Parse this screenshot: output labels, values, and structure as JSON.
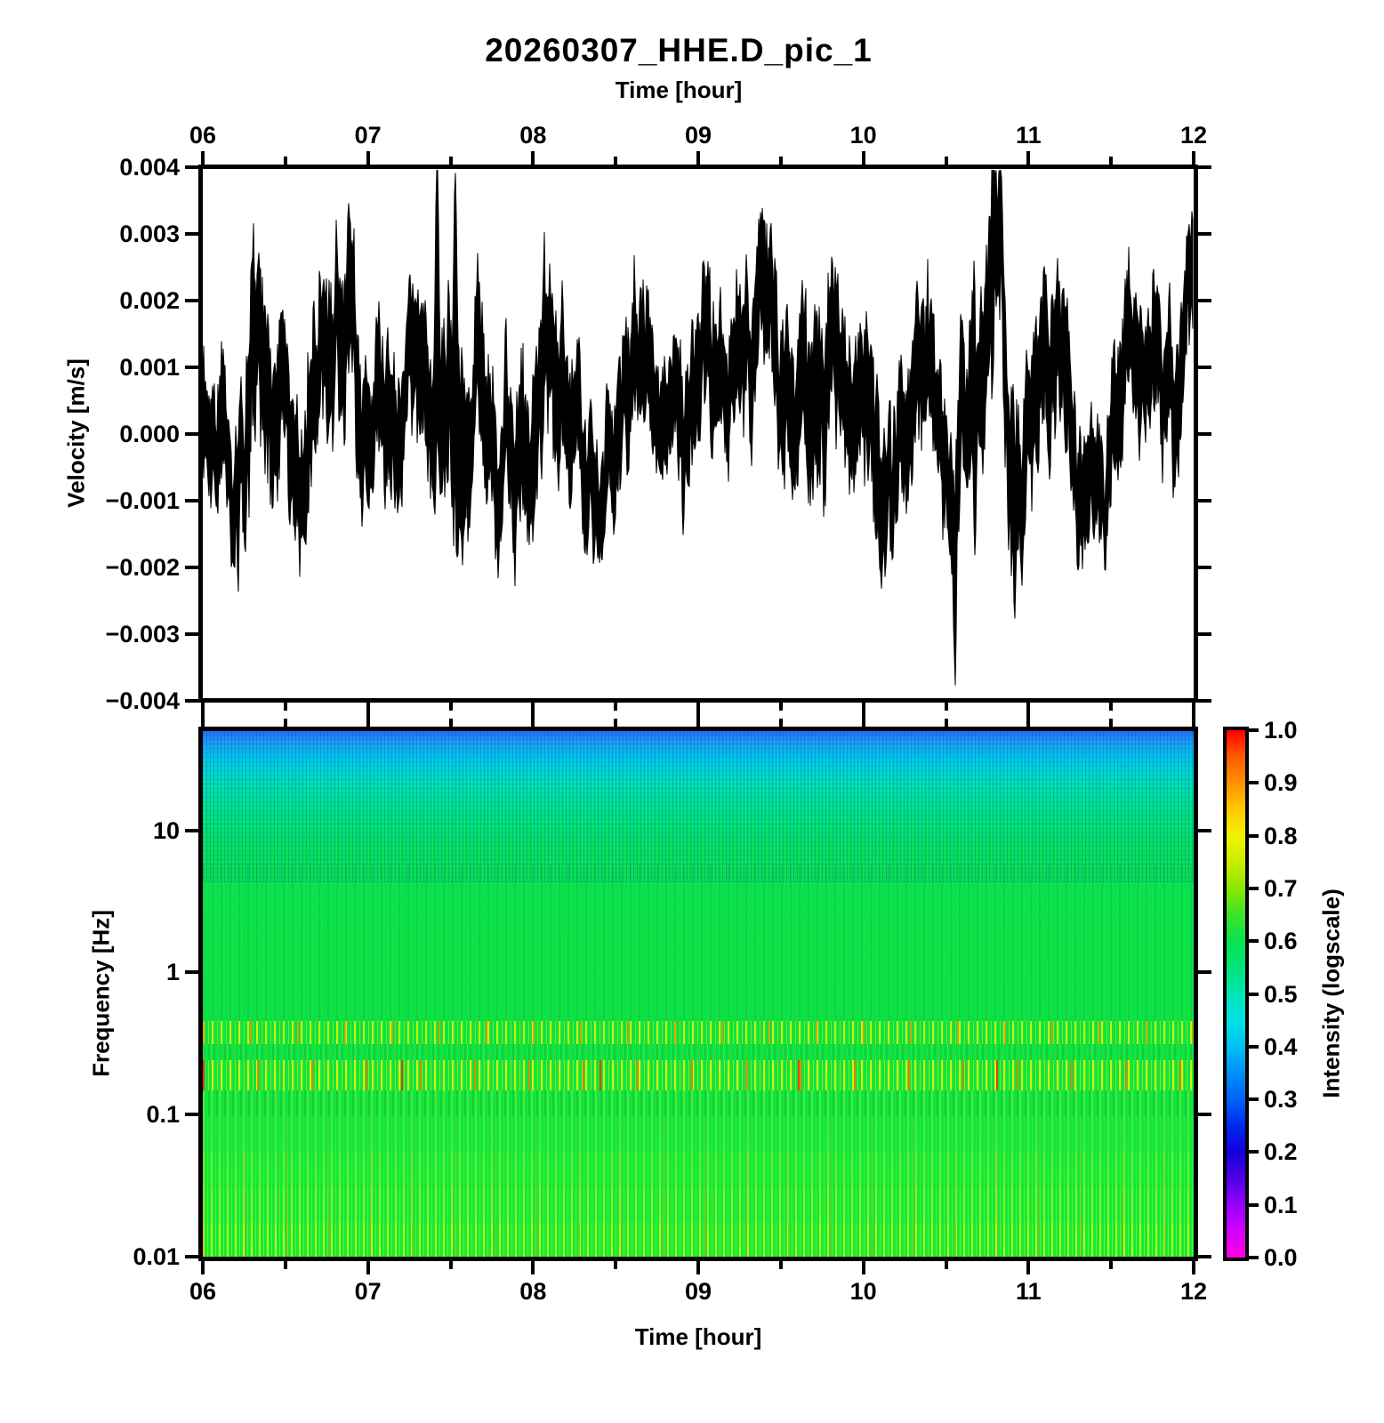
{
  "title": "20260307_HHE.D_pic_1",
  "background_color": "#ffffff",
  "trace_color": "#000000",
  "chart_data": [
    {
      "type": "line",
      "id": "waveform",
      "top_axis_title": "Time [hour]",
      "ylabel": "Velocity [m/s]",
      "x_range": [
        6,
        12
      ],
      "ylim": [
        -0.004,
        0.004
      ],
      "x_major_ticks": [
        6,
        7,
        8,
        9,
        10,
        11,
        12
      ],
      "x_tick_labels": [
        "06",
        "07",
        "08",
        "09",
        "10",
        "11",
        "12"
      ],
      "x_minor_ticks": [
        6.5,
        7.5,
        8.5,
        9.5,
        10.5,
        11.5
      ],
      "y_major_ticks": [
        0.004,
        0.003,
        0.002,
        0.001,
        0.0,
        -0.001,
        -0.002,
        -0.003,
        -0.004
      ],
      "y_tick_labels": [
        "0.004",
        "0.003",
        "0.002",
        "0.001",
        "0.000",
        "−0.001",
        "−0.002",
        "−0.003",
        "−0.004"
      ],
      "seed": 20260307,
      "envelope": [
        [
          6.0,
          0.0002,
          0.0012
        ],
        [
          6.15,
          0.0,
          0.0011
        ],
        [
          6.3,
          0.0008,
          0.0018
        ],
        [
          6.45,
          -0.0004,
          0.0014
        ],
        [
          6.6,
          0.0002,
          0.0013
        ],
        [
          6.75,
          0.0008,
          0.0015
        ],
        [
          6.9,
          0.001,
          0.0014
        ],
        [
          7.05,
          0.0009,
          0.0013
        ],
        [
          7.2,
          0.0004,
          0.0012
        ],
        [
          7.35,
          0.0006,
          0.0014
        ],
        [
          7.5,
          0.0009,
          0.0018
        ],
        [
          7.65,
          0.0007,
          0.0015
        ],
        [
          7.8,
          0.0002,
          0.0013
        ],
        [
          7.95,
          -0.0001,
          0.0014
        ],
        [
          8.1,
          0.0008,
          0.0015
        ],
        [
          8.25,
          0.0003,
          0.0012
        ],
        [
          8.4,
          0.0,
          0.0011
        ],
        [
          8.55,
          0.0006,
          0.0014
        ],
        [
          8.7,
          0.0007,
          0.0012
        ],
        [
          8.85,
          0.0005,
          0.0011
        ],
        [
          9.0,
          0.0003,
          0.0013
        ],
        [
          9.15,
          0.0009,
          0.0014
        ],
        [
          9.3,
          0.0009,
          0.0013
        ],
        [
          9.45,
          0.0012,
          0.0014
        ],
        [
          9.6,
          0.0004,
          0.0015
        ],
        [
          9.75,
          0.0009,
          0.0016
        ],
        [
          9.9,
          0.0002,
          0.0014
        ],
        [
          10.05,
          0.0007,
          0.0015
        ],
        [
          10.2,
          0.0001,
          0.0013
        ],
        [
          10.35,
          0.0007,
          0.0013
        ],
        [
          10.5,
          -0.0002,
          0.0013
        ],
        [
          10.65,
          0.0005,
          0.0016
        ],
        [
          10.8,
          0.0018,
          0.0017
        ],
        [
          10.95,
          -0.0006,
          0.0016
        ],
        [
          11.1,
          0.0007,
          0.0015
        ],
        [
          11.25,
          -0.0003,
          0.0012
        ],
        [
          11.4,
          -0.0005,
          0.001
        ],
        [
          11.55,
          0.0009,
          0.0013
        ],
        [
          11.7,
          0.0013,
          0.0012
        ],
        [
          11.85,
          0.0012,
          0.0012
        ],
        [
          12.0,
          0.0015,
          0.0012
        ]
      ],
      "spikes": [
        [
          7.42,
          0.0038
        ],
        [
          7.53,
          0.0031
        ],
        [
          10.56,
          -0.0039
        ],
        [
          10.68,
          -0.0026
        ],
        [
          10.79,
          0.0037
        ],
        [
          10.92,
          -0.0027
        ]
      ]
    },
    {
      "type": "heatmap",
      "id": "spectrogram",
      "xlabel": "Time [hour]",
      "ylabel": "Frequency [Hz]",
      "x_range": [
        6,
        12
      ],
      "y_range_hz": [
        0.01,
        50
      ],
      "y_scale": "log",
      "x_major_ticks": [
        6,
        7,
        8,
        9,
        10,
        11,
        12
      ],
      "x_tick_labels": [
        "06",
        "07",
        "08",
        "09",
        "10",
        "11",
        "12"
      ],
      "x_minor_ticks": [
        6.5,
        7.5,
        8.5,
        9.5,
        10.5,
        11.5
      ],
      "y_major_ticks": [
        10,
        1,
        0.1,
        0.01
      ],
      "y_tick_labels": [
        "10",
        "1",
        "0.1",
        "0.01"
      ],
      "content_summary": {
        "high_freq_band_25_50hz": "blue fading to cyan, intensity 0.3-0.45",
        "mid_band_1_20hz": "uniform green, intensity ~0.55-0.6",
        "microseism_band_0.4hz": "yellow vertical striping, intensity ~0.7-0.8",
        "microseism_band_0.2hz": "yellow-orange vertical striping, intensity ~0.75-0.9",
        "low_freq_below_0.1hz": "green with yellow stripes intensifying toward 0.01 Hz"
      },
      "colorbar": {
        "label": "Intensity (logscale)",
        "ticks": [
          1.0,
          0.9,
          0.8,
          0.7,
          0.6,
          0.5,
          0.4,
          0.3,
          0.2,
          0.1,
          0.0
        ],
        "tick_labels": [
          "1.0",
          "0.9",
          "0.8",
          "0.7",
          "0.6",
          "0.5",
          "0.4",
          "0.3",
          "0.2",
          "0.1",
          "0.0"
        ],
        "palette_top_to_bottom": [
          "#ff0000",
          "#ff9000",
          "#f2f200",
          "#8ae800",
          "#0ae24e",
          "#00e6b4",
          "#00c0f2",
          "#0064f8",
          "#1400dc",
          "#9600ff",
          "#ff00dc"
        ]
      }
    }
  ]
}
